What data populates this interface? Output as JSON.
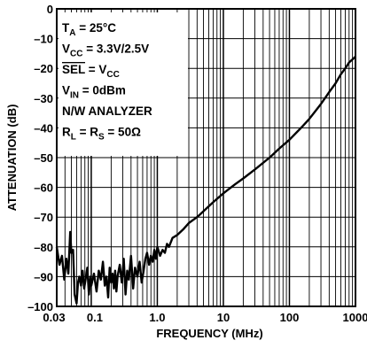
{
  "chart_data": {
    "type": "line",
    "title": "",
    "xlabel": "FREQUENCY (MHz)",
    "ylabel": "ATTENUATION (dB)",
    "xscale": "log",
    "xlim": [
      0.03,
      1000
    ],
    "ylim": [
      -100,
      0
    ],
    "grid": true,
    "x_ticks": [
      {
        "value": 0.03,
        "label": "0.03"
      },
      {
        "value": 0.1,
        "label": "0.1"
      },
      {
        "value": 1,
        "label": "1.0"
      },
      {
        "value": 10,
        "label": "10"
      },
      {
        "value": 100,
        "label": "100"
      },
      {
        "value": 1000,
        "label": "1000"
      }
    ],
    "y_ticks": [
      {
        "value": 0,
        "label": "0"
      },
      {
        "value": -10,
        "label": "–10"
      },
      {
        "value": -20,
        "label": "–20"
      },
      {
        "value": -30,
        "label": "–30"
      },
      {
        "value": -40,
        "label": "–40"
      },
      {
        "value": -50,
        "label": "–50"
      },
      {
        "value": -60,
        "label": "–60"
      },
      {
        "value": -70,
        "label": "–70"
      },
      {
        "value": -80,
        "label": "–80"
      },
      {
        "value": -90,
        "label": "–90"
      },
      {
        "value": -100,
        "label": "–100"
      }
    ],
    "conditions": [
      {
        "main": "T",
        "sub": "A",
        "rest": " = 25°C",
        "overline_main": false
      },
      {
        "main": "V",
        "sub": "CC",
        "rest": " = 3.3V/2.5V",
        "overline_main": false
      },
      {
        "main": "SEL",
        "sub": "",
        "rest": " = V",
        "sub2": "CC",
        "overline_main": true
      },
      {
        "main": "V",
        "sub": "IN",
        "rest": " = 0dBm",
        "overline_main": false
      },
      {
        "main": "N/W ANALYZER",
        "sub": "",
        "rest": "",
        "overline_main": false
      },
      {
        "main": "R",
        "sub": "L",
        "rest": " = R",
        "sub2": "S",
        "rest2": " = 50Ω",
        "overline_main": false
      }
    ],
    "series": [
      {
        "x": [
          0.03,
          0.033,
          0.036,
          0.039,
          0.042,
          0.045,
          0.048,
          0.05,
          0.053,
          0.056,
          0.06,
          0.063,
          0.066,
          0.07,
          0.074,
          0.078,
          0.082,
          0.087,
          0.092,
          0.097,
          0.1,
          0.11,
          0.12,
          0.13,
          0.14,
          0.15,
          0.16,
          0.17,
          0.18,
          0.19,
          0.2,
          0.21,
          0.22,
          0.23,
          0.24,
          0.25,
          0.27,
          0.29,
          0.31,
          0.33,
          0.35,
          0.37,
          0.4,
          0.43,
          0.46,
          0.5,
          0.54,
          0.58,
          0.62,
          0.66,
          0.7,
          0.75,
          0.8,
          0.85,
          0.9,
          0.95,
          1.0,
          1.1,
          1.2,
          1.3,
          1.4,
          1.5,
          1.7,
          2.0,
          2.5,
          3,
          4,
          5,
          7,
          10,
          15,
          20,
          30,
          50,
          70,
          100,
          150,
          200,
          300,
          400,
          500,
          600,
          700,
          800,
          900,
          1000
        ],
        "values": [
          -80,
          -86,
          -83,
          -91,
          -84,
          -89,
          -75,
          -82,
          -81,
          -96,
          -99,
          -92,
          -90,
          -93,
          -88,
          -94,
          -91,
          -87,
          -96,
          -90,
          -93,
          -89,
          -95,
          -88,
          -91,
          -85,
          -93,
          -90,
          -97,
          -87,
          -92,
          -89,
          -94,
          -88,
          -95,
          -90,
          -86,
          -92,
          -84,
          -96,
          -88,
          -91,
          -83,
          -94,
          -87,
          -90,
          -85,
          -92,
          -88,
          -84,
          -82,
          -86,
          -83,
          -85,
          -81,
          -84,
          -80,
          -83,
          -81,
          -82,
          -79,
          -80,
          -77,
          -76,
          -74,
          -72,
          -70,
          -68,
          -65,
          -62,
          -59,
          -57,
          -54,
          -50,
          -47,
          -44,
          -40,
          -37,
          -32,
          -28,
          -25,
          -22,
          -20,
          -18,
          -17,
          -16
        ]
      }
    ]
  }
}
